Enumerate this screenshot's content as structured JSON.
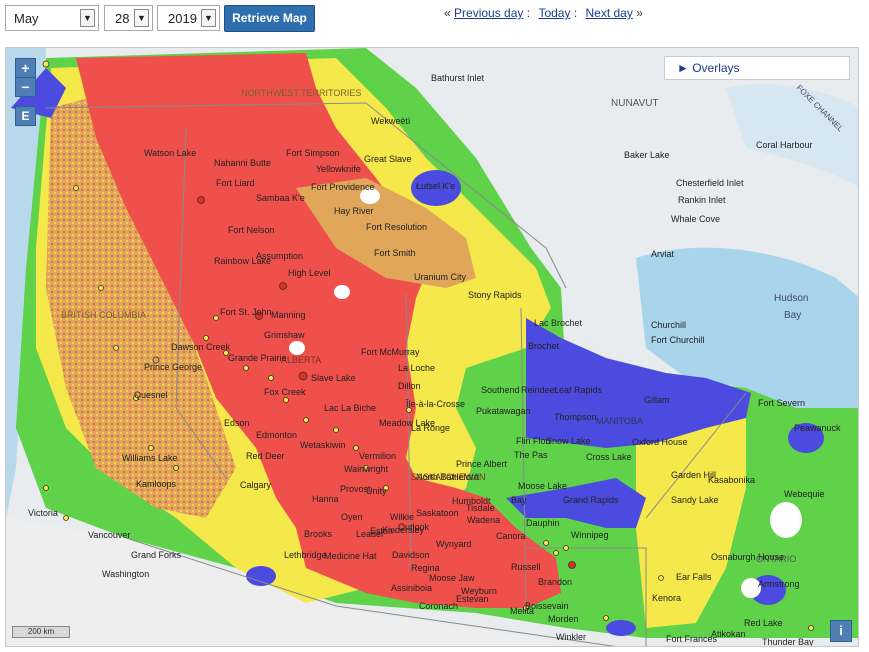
{
  "controls": {
    "month": "May",
    "day": "28",
    "year": "2019",
    "retrieve_label": "Retrieve Map"
  },
  "nav": {
    "prev_marker": "«",
    "previous_label": "Previous day",
    "sep1": ":",
    "today_label": "Today",
    "sep2": ":",
    "next_label": "Next day",
    "next_marker": "»"
  },
  "map": {
    "zoom_in": "+",
    "zoom_out": "−",
    "extent_button": "E",
    "overlays_label": "► Overlays",
    "scale_label": "200 km",
    "info_button": "i",
    "danger_colors": {
      "very_high": "#f0504b",
      "high": "#f5e84a",
      "moderate": "#5fd24a",
      "low": "#4b4be0",
      "extreme_mix": "#d6a35a"
    },
    "region_labels": {
      "nwt": "NORTHWEST TERRITORIES",
      "nunavut": "NUNAVUT",
      "bc": "BRITISH COLUMBIA",
      "alberta": "ALBERTA",
      "saskatchewan": "SASKATCHEWAN",
      "manitoba": "MANITOBA",
      "ontario": "ONTARIO",
      "hudson_bay_1": "Hudson",
      "hudson_bay_2": "Bay",
      "channel": "FOXE CHANNEL"
    },
    "places": {
      "bathurst": "Bathurst Inlet",
      "watson": "Watson Lake",
      "nahanni": "Nahanni Butte",
      "simpson": "Fort Simpson",
      "yellowknife": "Yellowknife",
      "great_slave": "Great Slave",
      "wekweeti": "Wekweètì",
      "lutselke": "Łutsel K'e",
      "fort_liard": "Fort Liard",
      "fort_providence": "Fort Providence",
      "sambaa": "Sambaa K'e",
      "hay_river": "Hay River",
      "fort_resolution": "Fort Resolution",
      "fort_nelson": "Fort Nelson",
      "fort_smith": "Fort Smith",
      "baker_lake": "Baker Lake",
      "chesterfield": "Chesterfield Inlet",
      "rankin": "Rankin Inlet",
      "whale_cove": "Whale Cove",
      "arviat": "Arviat",
      "coral": "Coral Harbour",
      "rainbow": "Rainbow Lake",
      "assumption": "Assumption",
      "high_level": "High Level",
      "uranium": "Uranium City",
      "stony_rapids": "Stony Rapids",
      "lac_brochet": "Lac Brochet",
      "brochet": "Brochet",
      "churchill": "Churchill",
      "fort_churchill": "Fort Churchill",
      "fort_st_john": "Fort St. John",
      "manning": "Manning",
      "peace_river": "Grimshaw",
      "dawson": "Dawson Creek",
      "grande_prairie": "Grande Prairie",
      "fort_mcmurray": "Fort McMurray",
      "la_loche": "La Loche",
      "southend": "Southend",
      "reindeer": "Reindeer",
      "leaf_rapids": "Leaf Rapids",
      "gillam": "Gillam",
      "fort_severn": "Fort Severn",
      "peawanuck": "Peawanuck",
      "slave_lake": "Slave Lake",
      "dillon": "Dillon",
      "ile_a_la_crosse": "Île-à-la-Crosse",
      "pukatawagan": "Pukatawagan",
      "thompson": "Thompson",
      "prince_george": "Prince George",
      "fox_creek": "Fox Creek",
      "lac_la_biche": "Lac La Biche",
      "flin_flon": "Flin Flon",
      "snow_lake": "Snow Lake",
      "oxford_house": "Oxford House",
      "quesnel": "Quesnel",
      "edson": "Edson",
      "edmonton": "Edmonton",
      "meadow_lake": "Meadow Lake",
      "la_ronge": "La Ronge",
      "the_pas": "The Pas",
      "cross_lake": "Cross Lake",
      "garden_hill": "Garden Hill",
      "wetaskiwin": "Wetaskiwin",
      "vermilion": "Vermilion",
      "prince_albert": "Prince Albert",
      "williams_lake": "Williams Lake",
      "red_deer": "Red Deer",
      "wainwright": "Wainwright",
      "north_battleford": "North Battleford",
      "moose_lake": "Moose Lake",
      "grand_rapids": "Grand Rapids",
      "sandy_lake": "Sandy Lake",
      "kasabonika": "Kasabonika",
      "webequie": "Webequie",
      "kamloops": "Kamloops",
      "calgary": "Calgary",
      "hanna": "Hanna",
      "provost": "Provost",
      "unity": "Unity",
      "saskatoon": "Saskatoon",
      "wadena": "Wadena",
      "dauphin": "Dauphin",
      "bay_flag": "Bay",
      "victoria": "Victoria",
      "vancouver": "Vancouver",
      "oyen": "Oyen",
      "kindersley": "Kindersley",
      "brooks": "Brooks",
      "leader": "Leader",
      "eston": "Eston",
      "outlook": "Outlook",
      "wynyard": "Wynyard",
      "winnipeg": "Winnipeg",
      "canora": "Canora",
      "wilkie": "Wilkie",
      "humboldt": "Humboldt",
      "tisdale": "Tisdale",
      "grand_forks": "Grand Forks",
      "lethbridge": "Lethbridge",
      "medicine_hat": "Medicine Hat",
      "davidson": "Davidson",
      "regina": "Regina",
      "moose_jaw": "Moose Jaw",
      "russell": "Russell",
      "brandon": "Brandon",
      "red_lake": "Red Lake",
      "ear_falls": "Ear Falls",
      "osnaburgh": "Osnaburgh House",
      "armstrong": "Armstrong",
      "washington": "Washington",
      "assiniboia": "Assiniboia",
      "estevan": "Estevan",
      "coronach": "Coronach",
      "weyburn": "Weyburn",
      "melita": "Melita",
      "boissevain": "Boissevain",
      "morden": "Morden",
      "kenora": "Kenora",
      "atikokan": "Atikokan",
      "fort_frances": "Fort Frances",
      "thunder_bay": "Thunder Bay",
      "winkler": "Winkler"
    }
  }
}
